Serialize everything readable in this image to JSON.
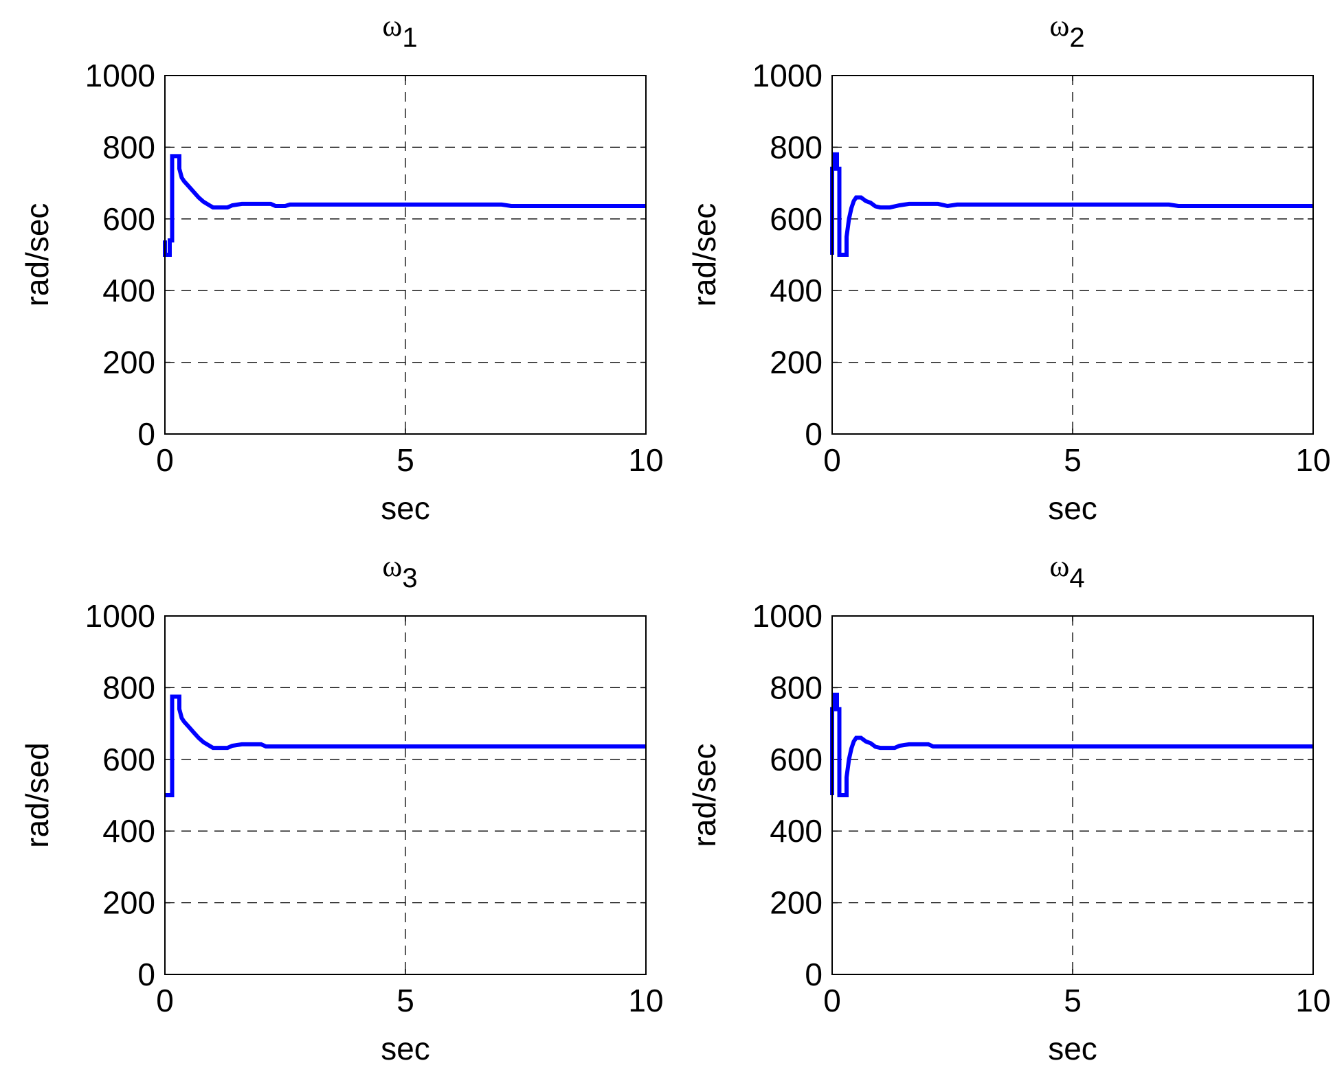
{
  "chart_data": [
    {
      "type": "line",
      "title": "ω1",
      "title_main": "ω",
      "title_sub": "1",
      "xlabel": "sec",
      "ylabel": "rad/sec",
      "xlim": [
        0,
        10
      ],
      "ylim": [
        0,
        1000
      ],
      "xticks": [
        "0",
        "5",
        "10"
      ],
      "yticks": [
        "0",
        "200",
        "400",
        "600",
        "800",
        "1000"
      ],
      "grid": true,
      "series": [
        {
          "color": "#0000ff",
          "x": [
            0,
            0,
            0.05,
            0.1,
            0.1,
            0.15,
            0.15,
            0.3,
            0.3,
            0.35,
            0.4,
            0.5,
            0.6,
            0.7,
            0.8,
            0.9,
            1.0,
            1.3,
            1.4,
            1.6,
            2.2,
            2.3,
            2.5,
            2.6,
            7.0,
            7.2,
            10
          ],
          "y": [
            540,
            500,
            500,
            500,
            540,
            540,
            775,
            775,
            740,
            715,
            705,
            690,
            675,
            660,
            648,
            640,
            632,
            632,
            638,
            642,
            642,
            636,
            636,
            640,
            640,
            636,
            636
          ]
        }
      ]
    },
    {
      "type": "line",
      "title": "ω2",
      "title_main": "ω",
      "title_sub": "2",
      "xlabel": "sec",
      "ylabel": "rad/sec",
      "xlim": [
        0,
        10
      ],
      "ylim": [
        0,
        1000
      ],
      "xticks": [
        "0",
        "5",
        "10"
      ],
      "yticks": [
        "0",
        "200",
        "400",
        "600",
        "800",
        "1000"
      ],
      "grid": true,
      "series": [
        {
          "color": "#0000ff",
          "x": [
            0,
            0,
            0.05,
            0.05,
            0.1,
            0.1,
            0.15,
            0.15,
            0.3,
            0.3,
            0.35,
            0.4,
            0.45,
            0.5,
            0.6,
            0.7,
            0.8,
            0.9,
            1.0,
            1.2,
            1.4,
            1.6,
            2.2,
            2.4,
            2.6,
            7.0,
            7.2,
            10
          ],
          "y": [
            500,
            740,
            740,
            780,
            780,
            740,
            740,
            500,
            500,
            550,
            600,
            630,
            650,
            660,
            660,
            650,
            645,
            635,
            632,
            632,
            638,
            642,
            642,
            636,
            640,
            640,
            636,
            636
          ]
        }
      ]
    },
    {
      "type": "line",
      "title": "ω3",
      "title_main": "ω",
      "title_sub": "3",
      "xlabel": "sec",
      "ylabel": "rad/sed",
      "xlim": [
        0,
        10
      ],
      "ylim": [
        0,
        1000
      ],
      "xticks": [
        "0",
        "5",
        "10"
      ],
      "yticks": [
        "0",
        "200",
        "400",
        "600",
        "800",
        "1000"
      ],
      "grid": true,
      "series": [
        {
          "color": "#0000ff",
          "x": [
            0,
            0.15,
            0.15,
            0.3,
            0.3,
            0.35,
            0.4,
            0.5,
            0.6,
            0.7,
            0.8,
            0.9,
            1.0,
            1.3,
            1.4,
            1.6,
            2.0,
            2.1,
            10
          ],
          "y": [
            500,
            500,
            775,
            775,
            740,
            715,
            705,
            690,
            675,
            660,
            648,
            640,
            632,
            632,
            638,
            642,
            642,
            636,
            636
          ]
        }
      ]
    },
    {
      "type": "line",
      "title": "ω4",
      "title_main": "ω",
      "title_sub": "4",
      "xlabel": "sec",
      "ylabel": "rad/sec",
      "xlim": [
        0,
        10
      ],
      "ylim": [
        0,
        1000
      ],
      "xticks": [
        "0",
        "5",
        "10"
      ],
      "yticks": [
        "0",
        "200",
        "400",
        "600",
        "800",
        "1000"
      ],
      "grid": true,
      "series": [
        {
          "color": "#0000ff",
          "x": [
            0,
            0,
            0.05,
            0.05,
            0.1,
            0.1,
            0.15,
            0.15,
            0.3,
            0.3,
            0.35,
            0.4,
            0.45,
            0.5,
            0.6,
            0.7,
            0.8,
            0.9,
            1.0,
            1.3,
            1.4,
            1.6,
            2.0,
            2.1,
            10
          ],
          "y": [
            500,
            740,
            740,
            780,
            780,
            740,
            740,
            500,
            500,
            550,
            600,
            630,
            650,
            660,
            660,
            650,
            645,
            635,
            632,
            632,
            638,
            642,
            642,
            636,
            636
          ]
        }
      ]
    }
  ]
}
